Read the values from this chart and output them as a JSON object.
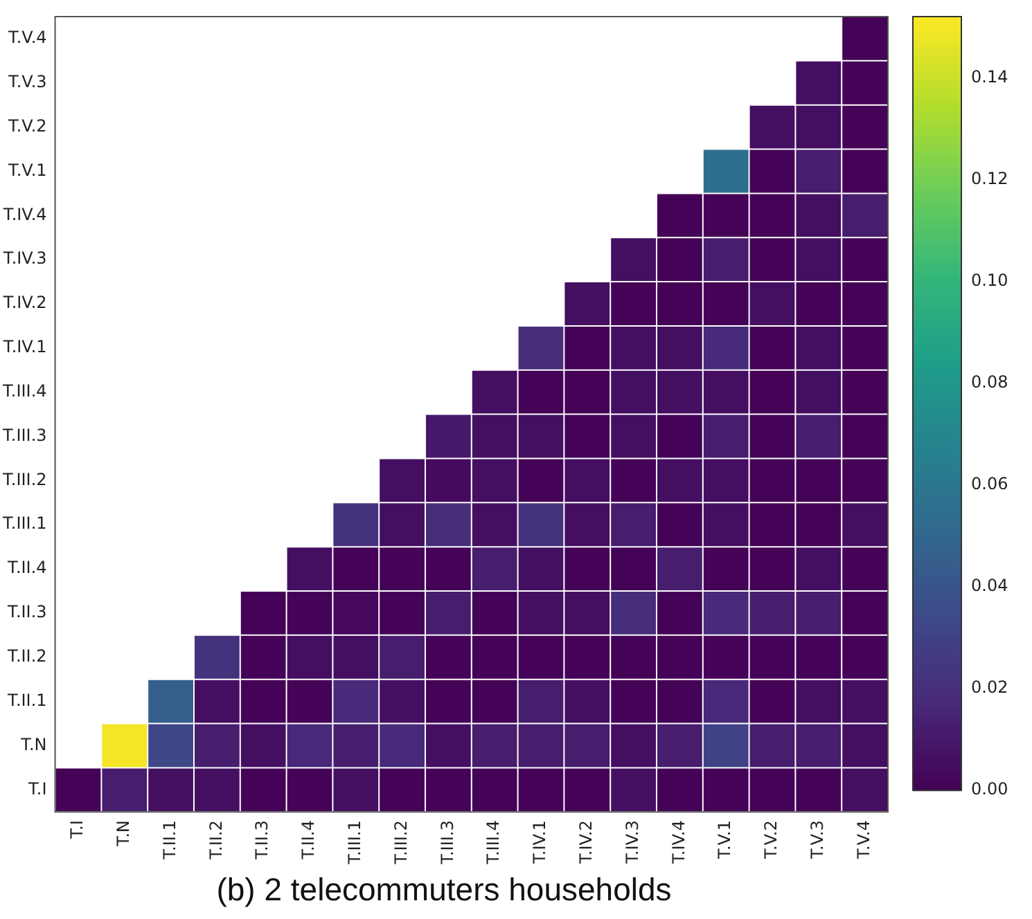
{
  "chart_data": {
    "type": "heatmap",
    "title": "(b) 2 telecommuters households",
    "categories": [
      "T.I",
      "T.N",
      "T.II.1",
      "T.II.2",
      "T.II.3",
      "T.II.4",
      "T.III.1",
      "T.III.2",
      "T.III.3",
      "T.III.4",
      "T.IV.1",
      "T.IV.2",
      "T.IV.3",
      "T.IV.4",
      "T.V.1",
      "T.V.2",
      "T.V.3",
      "T.V.4"
    ],
    "y_categories": [
      "T.V.4",
      "T.V.3",
      "T.V.2",
      "T.V.1",
      "T.IV.4",
      "T.IV.3",
      "T.IV.2",
      "T.IV.1",
      "T.III.4",
      "T.III.3",
      "T.III.2",
      "T.III.1",
      "T.II.4",
      "T.II.3",
      "T.II.2",
      "T.II.1",
      "T.N",
      "T.I"
    ],
    "cells": [
      [
        null,
        null,
        null,
        null,
        null,
        null,
        null,
        null,
        null,
        null,
        null,
        null,
        null,
        null,
        null,
        null,
        null,
        0.001
      ],
      [
        null,
        null,
        null,
        null,
        null,
        null,
        null,
        null,
        null,
        null,
        null,
        null,
        null,
        null,
        null,
        null,
        0.006,
        0.001
      ],
      [
        null,
        null,
        null,
        null,
        null,
        null,
        null,
        null,
        null,
        null,
        null,
        null,
        null,
        null,
        null,
        0.006,
        0.006,
        0.001
      ],
      [
        null,
        null,
        null,
        null,
        null,
        null,
        null,
        null,
        null,
        null,
        null,
        null,
        null,
        null,
        0.055,
        0.001,
        0.012,
        0.001
      ],
      [
        null,
        null,
        null,
        null,
        null,
        null,
        null,
        null,
        null,
        null,
        null,
        null,
        null,
        0.001,
        0.001,
        0.001,
        0.006,
        0.012
      ],
      [
        null,
        null,
        null,
        null,
        null,
        null,
        null,
        null,
        null,
        null,
        null,
        null,
        0.006,
        0.001,
        0.012,
        0.001,
        0.006,
        0.001
      ],
      [
        null,
        null,
        null,
        null,
        null,
        null,
        null,
        null,
        null,
        null,
        null,
        0.006,
        0.001,
        0.001,
        0.001,
        0.006,
        0.001,
        0.001
      ],
      [
        null,
        null,
        null,
        null,
        null,
        null,
        null,
        null,
        null,
        null,
        0.02,
        0.001,
        0.006,
        0.006,
        0.018,
        0.001,
        0.006,
        0.001
      ],
      [
        null,
        null,
        null,
        null,
        null,
        null,
        null,
        null,
        null,
        0.006,
        0.001,
        0.001,
        0.006,
        0.006,
        0.006,
        0.001,
        0.006,
        0.001
      ],
      [
        null,
        null,
        null,
        null,
        null,
        null,
        null,
        null,
        0.01,
        0.006,
        0.006,
        0.001,
        0.006,
        0.001,
        0.012,
        0.001,
        0.012,
        0.001
      ],
      [
        null,
        null,
        null,
        null,
        null,
        null,
        null,
        0.006,
        0.004,
        0.006,
        0.001,
        0.006,
        0.001,
        0.006,
        0.006,
        0.001,
        0.001,
        0.001
      ],
      [
        null,
        null,
        null,
        null,
        null,
        null,
        0.022,
        0.006,
        0.02,
        0.006,
        0.022,
        0.006,
        0.012,
        0.001,
        0.006,
        0.001,
        0.001,
        0.006
      ],
      [
        null,
        null,
        null,
        null,
        null,
        0.006,
        0.001,
        0.001,
        0.001,
        0.012,
        0.006,
        0.001,
        0.001,
        0.012,
        0.001,
        0.001,
        0.006,
        0.001
      ],
      [
        null,
        null,
        null,
        null,
        0.001,
        0.001,
        0.003,
        0.001,
        0.012,
        0.001,
        0.006,
        0.006,
        0.02,
        0.001,
        0.018,
        0.012,
        0.012,
        0.001
      ],
      [
        null,
        null,
        null,
        0.022,
        0.001,
        0.006,
        0.006,
        0.012,
        0.001,
        0.001,
        0.001,
        0.001,
        0.001,
        0.001,
        0.001,
        0.001,
        0.001,
        0.001
      ],
      [
        null,
        null,
        0.045,
        0.006,
        0.001,
        0.001,
        0.018,
        0.006,
        0.001,
        0.001,
        0.012,
        0.006,
        0.001,
        0.001,
        0.017,
        0.001,
        0.006,
        0.006
      ],
      [
        null,
        0.15,
        0.032,
        0.012,
        0.006,
        0.017,
        0.012,
        0.018,
        0.006,
        0.012,
        0.012,
        0.012,
        0.006,
        0.012,
        0.03,
        0.012,
        0.012,
        0.006
      ],
      [
        0.001,
        0.012,
        0.006,
        0.006,
        0.001,
        0.001,
        0.006,
        0.001,
        0.001,
        0.001,
        0.001,
        0.001,
        0.006,
        0.001,
        0.001,
        0.001,
        0.001,
        0.006
      ]
    ],
    "clim": [
      0,
      0.152
    ],
    "cticks": [
      {
        "value": 0,
        "label": "0.00"
      },
      {
        "value": 0.02,
        "label": "0.02"
      },
      {
        "value": 0.04,
        "label": "0.04"
      },
      {
        "value": 0.06,
        "label": "0.06"
      },
      {
        "value": 0.08,
        "label": "0.08"
      },
      {
        "value": 0.1,
        "label": "0.10"
      },
      {
        "value": 0.12,
        "label": "0.12"
      },
      {
        "value": 0.14,
        "label": "0.14"
      }
    ]
  }
}
